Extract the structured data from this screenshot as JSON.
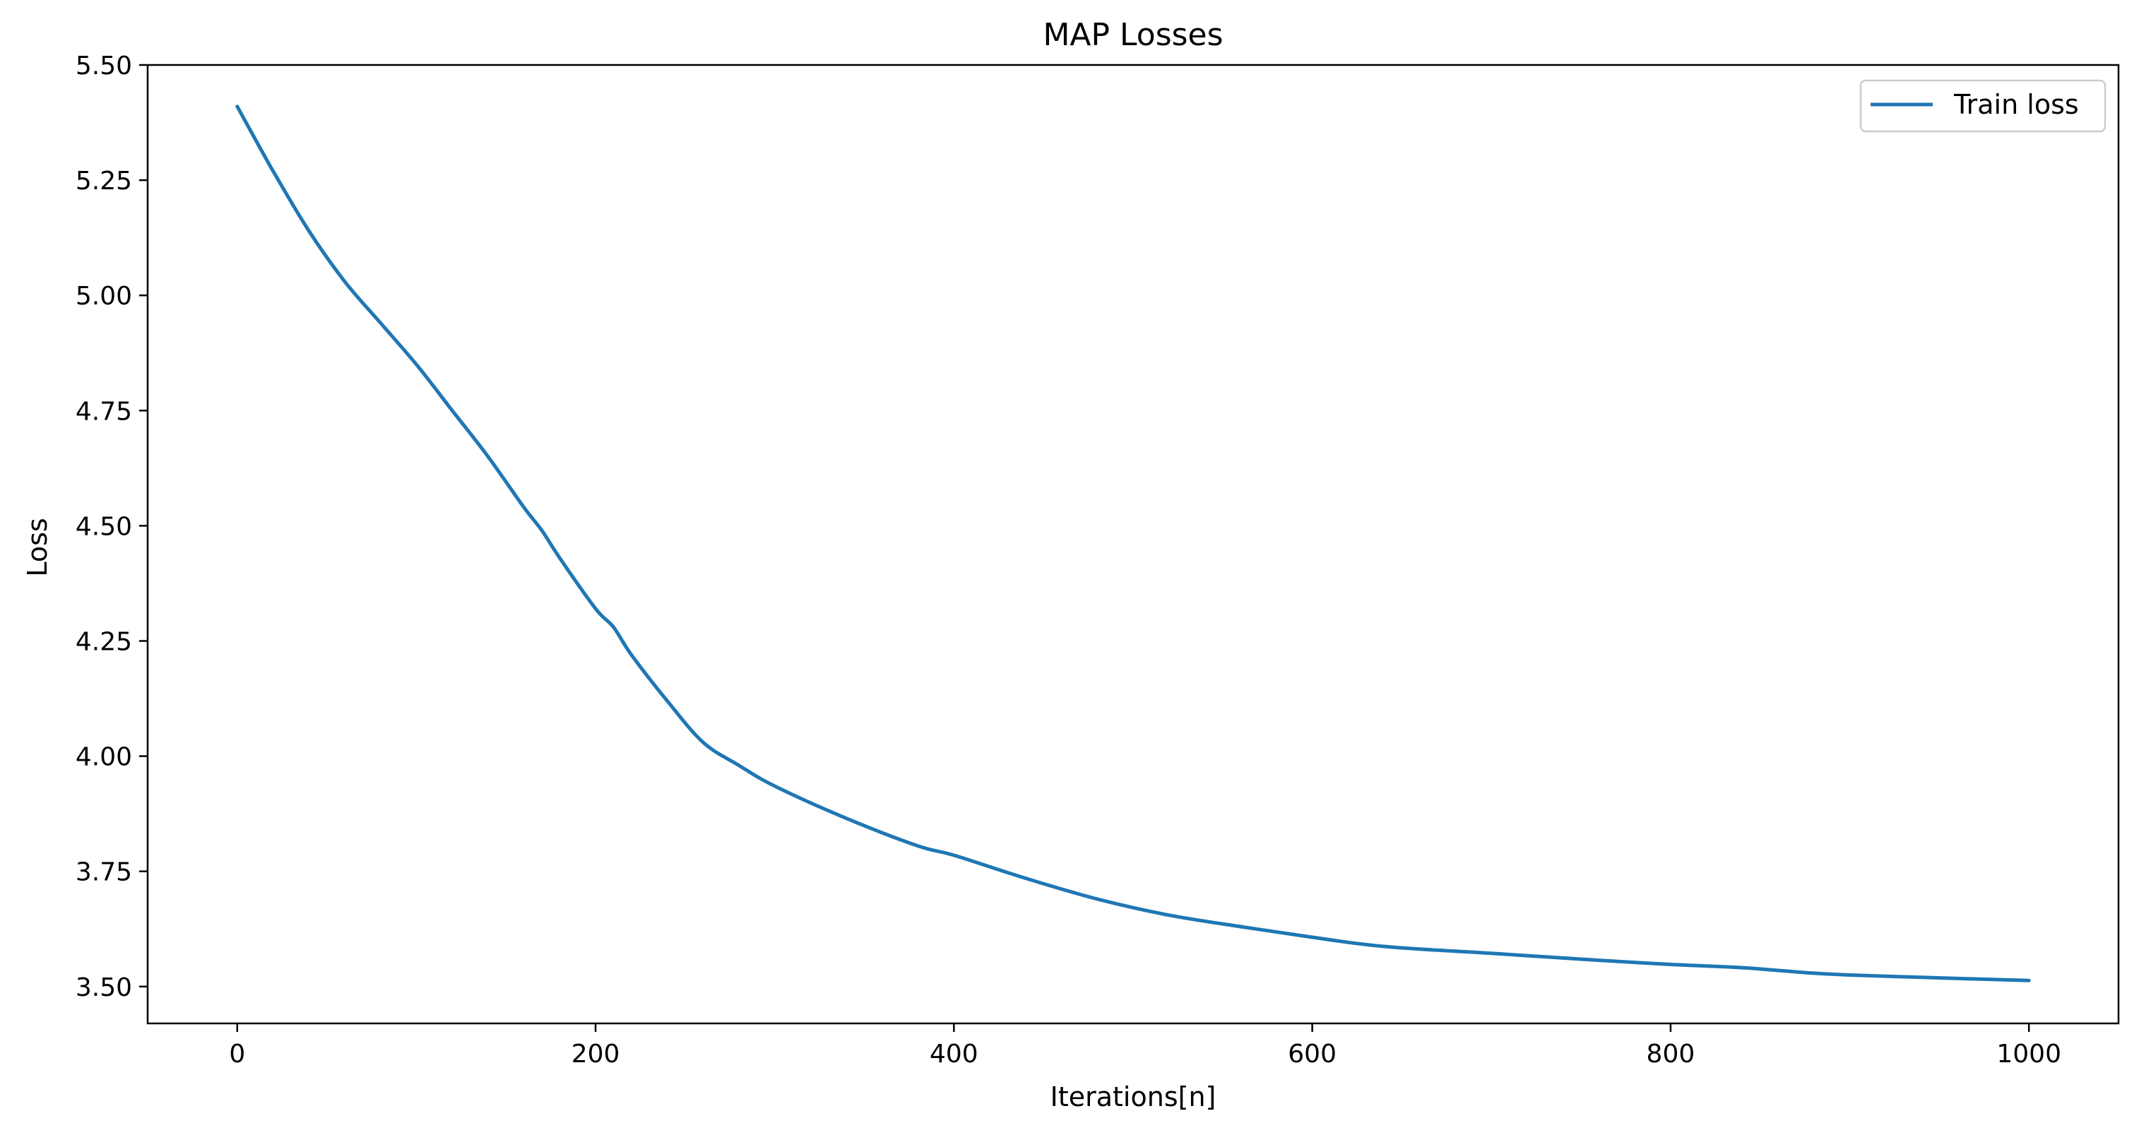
{
  "chart_data": {
    "type": "line",
    "title": "MAP Losses",
    "xlabel": "Iterations[n]",
    "ylabel": "Loss",
    "xlim": [
      -50,
      1050
    ],
    "ylim": [
      3.42,
      5.5
    ],
    "xticks": [
      0,
      200,
      400,
      600,
      800,
      1000
    ],
    "xtick_labels": [
      "0",
      "200",
      "400",
      "600",
      "800",
      "1000"
    ],
    "yticks": [
      3.5,
      3.75,
      4.0,
      4.25,
      4.5,
      4.75,
      5.0,
      5.25,
      5.5
    ],
    "ytick_labels": [
      "3.50",
      "3.75",
      "4.00",
      "4.25",
      "4.50",
      "4.75",
      "5.00",
      "5.25",
      "5.50"
    ],
    "grid": false,
    "legend_position": "top-right",
    "series": [
      {
        "name": "Train loss",
        "color": "#1f77b4",
        "x": [
          0,
          20,
          40,
          60,
          80,
          100,
          120,
          140,
          160,
          170,
          180,
          200,
          210,
          220,
          240,
          260,
          280,
          300,
          340,
          380,
          400,
          440,
          480,
          520,
          560,
          600,
          640,
          700,
          760,
          800,
          840,
          860,
          880,
          900,
          940,
          1000
        ],
        "y": [
          5.41,
          5.27,
          5.14,
          5.03,
          4.94,
          4.85,
          4.75,
          4.65,
          4.54,
          4.49,
          4.43,
          4.32,
          4.28,
          4.22,
          4.12,
          4.03,
          3.98,
          3.935,
          3.865,
          3.805,
          3.785,
          3.735,
          3.69,
          3.655,
          3.63,
          3.607,
          3.587,
          3.572,
          3.557,
          3.548,
          3.541,
          3.535,
          3.529,
          3.525,
          3.52,
          3.513
        ]
      }
    ]
  }
}
